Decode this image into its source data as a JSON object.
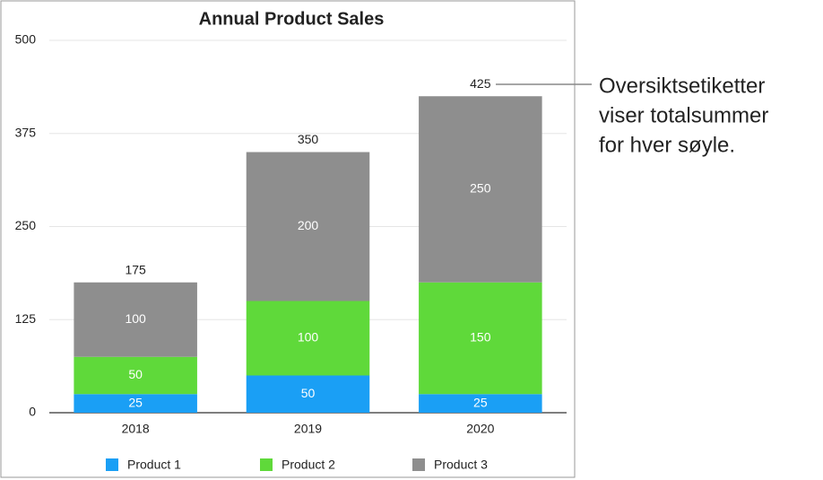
{
  "chart_data": {
    "type": "stacked-bar",
    "title": "Annual Product Sales",
    "categories": [
      "2018",
      "2019",
      "2020"
    ],
    "series": [
      {
        "name": "Product 1",
        "color": "#1a9ff5",
        "values": [
          25,
          50,
          25
        ]
      },
      {
        "name": "Product 2",
        "color": "#5fd93a",
        "values": [
          50,
          100,
          150
        ]
      },
      {
        "name": "Product 3",
        "color": "#8e8e8e",
        "values": [
          100,
          200,
          250
        ]
      }
    ],
    "totals": [
      175,
      350,
      425
    ],
    "ylim": [
      0,
      500
    ],
    "yticks": [
      0,
      125,
      250,
      375,
      500
    ],
    "grid": true,
    "legend": "bottom",
    "annotation": [
      "Oversiktsetiketter",
      "viser totalsummer",
      "for hver søyle."
    ]
  }
}
